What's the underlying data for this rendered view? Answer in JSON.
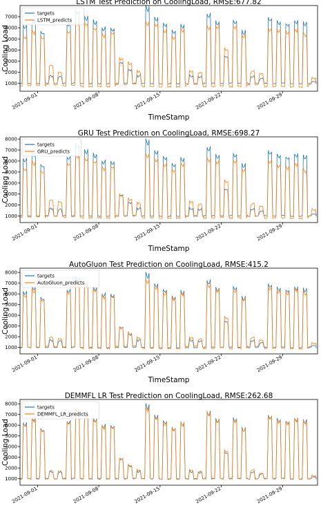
{
  "figure": {
    "colors": {
      "targets": "#1f77b4",
      "predicts": "#ff7f0e"
    },
    "x_tick_labels": [
      "2021-09-01",
      "2021-09-08",
      "2021-09-15",
      "2021-09-22",
      "2021-09-29"
    ],
    "y_tick_labels": [
      "1000",
      "2000",
      "3000",
      "4000",
      "5000",
      "6000",
      "7000",
      "8000"
    ]
  },
  "chart_data": [
    {
      "type": "line",
      "title": "LSTM Test Prediction on CoolingLoad, RMSE:677.82",
      "xlabel": "TimeStamp",
      "ylabel": "Cooling Load",
      "ylim": [
        300,
        8000
      ],
      "x_ticks": [
        "2021-09-01",
        "2021-09-08",
        "2021-09-15",
        "2021-09-22",
        "2021-09-29"
      ],
      "y_ticks": [
        1000,
        2000,
        3000,
        4000,
        5000,
        6000,
        7000
      ],
      "legend": "top-left",
      "series": [
        {
          "name": "targets",
          "color": "#1f77b4",
          "daily_peak": [
            6300,
            6800,
            5700,
            1700,
            1600,
            6500,
            7700,
            7100,
            6700,
            6100,
            6000,
            2900,
            2300,
            1700,
            8000,
            7000,
            6500,
            5900,
            6400,
            1700,
            1600,
            7400,
            6700,
            3500,
            6700,
            5800,
            1700,
            1400,
            7000,
            6700,
            6500,
            6800,
            6600,
            1200
          ],
          "daily_base": [
            1000,
            1000,
            1000,
            1000,
            1000,
            1000,
            1000,
            1000,
            1000,
            1000,
            1000,
            1000,
            1000,
            1000,
            1000,
            1000,
            1000,
            1000,
            1000,
            1000,
            1000,
            1000,
            1000,
            1000,
            1000,
            1000,
            1000,
            1000,
            1000,
            1000,
            1000,
            1000,
            1000,
            1000
          ]
        },
        {
          "name": "LSTM_predicts",
          "color": "#ff7f0e",
          "daily_peak": [
            5300,
            5800,
            5300,
            2700,
            2000,
            5800,
            6700,
            6500,
            6100,
            5500,
            5700,
            3300,
            2900,
            2100,
            6700,
            6500,
            6000,
            5300,
            6000,
            2100,
            2000,
            6200,
            6300,
            4200,
            6300,
            5500,
            2100,
            1900,
            6000,
            6000,
            5800,
            6000,
            5600,
            1500
          ],
          "daily_base": [
            800,
            800,
            800,
            900,
            900,
            800,
            800,
            700,
            700,
            700,
            700,
            900,
            900,
            900,
            700,
            700,
            700,
            700,
            700,
            900,
            900,
            700,
            700,
            800,
            700,
            700,
            900,
            900,
            700,
            700,
            700,
            700,
            700,
            900
          ]
        }
      ]
    },
    {
      "type": "line",
      "title": "GRU Test Prediction on CoolingLoad, RMSE:698.27",
      "xlabel": "TimeStamp",
      "ylabel": "Cooling Load",
      "ylim": [
        400,
        8200
      ],
      "x_ticks": [
        "2021-09-01",
        "2021-09-08",
        "2021-09-15",
        "2021-09-22",
        "2021-09-29"
      ],
      "y_ticks": [
        1000,
        2000,
        3000,
        4000,
        5000,
        6000,
        7000,
        8000
      ],
      "legend": "top-left",
      "series": [
        {
          "name": "targets",
          "color": "#1f77b4",
          "daily_peak": [
            6300,
            6800,
            5700,
            1700,
            1600,
            6500,
            7700,
            7100,
            6700,
            6100,
            6000,
            2900,
            2300,
            1700,
            8000,
            7000,
            6500,
            5900,
            6400,
            1700,
            1600,
            7400,
            6700,
            3500,
            6700,
            5800,
            1700,
            1400,
            7000,
            6700,
            6500,
            6800,
            6600,
            1200
          ],
          "daily_base": [
            1000,
            1000,
            1000,
            1000,
            1000,
            1000,
            1000,
            1000,
            1000,
            1000,
            1000,
            1000,
            1000,
            1000,
            1000,
            1000,
            1000,
            1000,
            1000,
            1000,
            1000,
            1000,
            1000,
            1000,
            1000,
            1000,
            1000,
            1000,
            1000,
            1000,
            1000,
            1000,
            1000,
            1000
          ]
        },
        {
          "name": "GRU_predicts",
          "color": "#ff7f0e",
          "daily_peak": [
            5400,
            6000,
            5200,
            2500,
            2300,
            5900,
            6700,
            6300,
            6100,
            5500,
            5600,
            3000,
            2600,
            2200,
            6800,
            6300,
            5900,
            5300,
            5900,
            2300,
            2100,
            6300,
            6100,
            4300,
            6200,
            5400,
            2100,
            1900,
            6100,
            5800,
            5600,
            5900,
            5300,
            1600
          ],
          "daily_base": [
            900,
            900,
            900,
            1000,
            1000,
            900,
            900,
            800,
            800,
            800,
            800,
            1000,
            1000,
            1000,
            800,
            800,
            800,
            800,
            800,
            1000,
            1000,
            800,
            800,
            900,
            800,
            800,
            1000,
            1000,
            800,
            800,
            800,
            800,
            800,
            1000
          ]
        }
      ]
    },
    {
      "type": "line",
      "title": "AutoGluon Test Prediction on CoolingLoad, RMSE:415.2",
      "xlabel": "TimeStamp",
      "ylabel": "Cooling Load",
      "ylim": [
        400,
        8400
      ],
      "x_ticks": [
        "2021-09-01",
        "2021-09-08",
        "2021-09-15",
        "2021-09-22",
        "2021-09-29"
      ],
      "y_ticks": [
        1000,
        2000,
        3000,
        4000,
        5000,
        6000,
        7000,
        8000
      ],
      "legend": "top-left",
      "series": [
        {
          "name": "targets",
          "color": "#1f77b4",
          "daily_peak": [
            6300,
            6800,
            5700,
            1700,
            1600,
            6500,
            7700,
            7100,
            6700,
            6100,
            6000,
            2900,
            2300,
            1700,
            8000,
            7000,
            6500,
            5900,
            6400,
            1700,
            1600,
            7400,
            6700,
            3500,
            6700,
            5800,
            1700,
            1400,
            7000,
            6700,
            6500,
            6800,
            6600,
            1200
          ],
          "daily_base": [
            1000,
            1000,
            1000,
            1000,
            1000,
            1000,
            1000,
            1000,
            1000,
            1000,
            1000,
            1000,
            1000,
            1000,
            1000,
            1000,
            1000,
            1000,
            1000,
            1000,
            1000,
            1000,
            1000,
            1000,
            1000,
            1000,
            1000,
            1000,
            1000,
            1000,
            1000,
            1000,
            1000,
            1000
          ]
        },
        {
          "name": "AutoGluon_predicts",
          "color": "#ff7f0e",
          "daily_peak": [
            6000,
            6500,
            5600,
            2000,
            1800,
            6300,
            7300,
            6900,
            6500,
            5900,
            5900,
            2900,
            2400,
            1900,
            7500,
            6800,
            6300,
            5700,
            6200,
            1900,
            1800,
            7000,
            6500,
            3900,
            6500,
            5700,
            1900,
            1700,
            6700,
            6500,
            6300,
            6600,
            6300,
            1400
          ],
          "daily_base": [
            1000,
            1000,
            1000,
            1100,
            1100,
            1000,
            1000,
            900,
            900,
            900,
            900,
            1100,
            1100,
            1100,
            900,
            900,
            900,
            900,
            900,
            1100,
            1100,
            900,
            900,
            1000,
            900,
            900,
            1100,
            1100,
            900,
            900,
            900,
            900,
            900,
            1100
          ]
        }
      ]
    },
    {
      "type": "line",
      "title": "DEMMFL LR Test Prediction on CoolingLoad, RMSE:262.68",
      "xlabel": "TimeStamp",
      "ylabel": "Cooling Load",
      "ylim": [
        400,
        8400
      ],
      "x_ticks": [
        "2021-09-01",
        "2021-09-08",
        "2021-09-15",
        "2021-09-22",
        "2021-09-29"
      ],
      "y_ticks": [
        1000,
        2000,
        3000,
        4000,
        5000,
        6000,
        7000,
        8000
      ],
      "legend": "top-left",
      "series": [
        {
          "name": "targets",
          "color": "#1f77b4",
          "daily_peak": [
            6300,
            6800,
            5700,
            1700,
            1600,
            6500,
            7700,
            7100,
            6700,
            6100,
            6000,
            2900,
            2300,
            1700,
            8000,
            7000,
            6500,
            5900,
            6400,
            1700,
            1600,
            7400,
            6700,
            3500,
            6700,
            5800,
            1700,
            1400,
            7000,
            6700,
            6500,
            6800,
            6600,
            1200
          ],
          "daily_base": [
            1000,
            1000,
            1000,
            1000,
            1000,
            1000,
            1000,
            1000,
            1000,
            1000,
            1000,
            1000,
            1000,
            1000,
            1000,
            1000,
            1000,
            1000,
            1000,
            1000,
            1000,
            1000,
            1000,
            1000,
            1000,
            1000,
            1000,
            1000,
            1000,
            1000,
            1000,
            1000,
            1000,
            1000
          ]
        },
        {
          "name": "DEMMFL_LR_predicts",
          "color": "#ff7f0e",
          "daily_peak": [
            6200,
            6700,
            5700,
            1800,
            1700,
            6400,
            7600,
            7000,
            6600,
            6000,
            6000,
            2900,
            2300,
            1800,
            7800,
            6900,
            6400,
            5800,
            6300,
            1800,
            1700,
            7300,
            6600,
            3700,
            6600,
            5800,
            1800,
            1500,
            6900,
            6600,
            6400,
            6700,
            6500,
            1300
          ],
          "daily_base": [
            1000,
            1000,
            1000,
            1000,
            1000,
            1000,
            1000,
            1000,
            1000,
            1000,
            1000,
            1000,
            1000,
            1000,
            1000,
            1000,
            1000,
            1000,
            1000,
            1000,
            1000,
            1000,
            1000,
            1000,
            1000,
            1000,
            1000,
            1000,
            1000,
            1000,
            1000,
            1000,
            1000,
            1000
          ]
        }
      ]
    }
  ]
}
